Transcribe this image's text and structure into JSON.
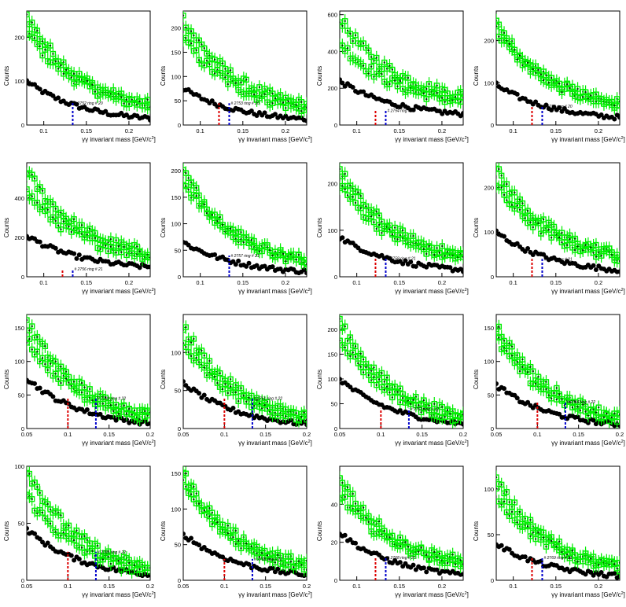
{
  "common": {
    "xlabel_main": "γγ invariant mass [GeV/c",
    "xlabel_sup": "2",
    "xlabel_end": "]",
    "ylabel": "Counts"
  },
  "colors": {
    "green": "#00ee00",
    "black": "#000000",
    "red_line": "#dd0000",
    "blue_line": "#0000cc"
  },
  "chart_data": [
    {
      "type": "scatter",
      "xlim": [
        0.08,
        0.225
      ],
      "ylim": [
        0,
        260
      ],
      "xticks": [
        0.1,
        0.15,
        0.2
      ],
      "xtick_labels": [
        "0.1",
        "0.15",
        "0.2"
      ],
      "yticks": [
        0,
        100,
        200
      ],
      "ytick_labels": [
        "0",
        "100",
        "200"
      ],
      "annotation": "# 2752  ring # 20",
      "red_x": null,
      "blue_x": 0.134,
      "marker_y": 50,
      "series": [
        {
          "name": "",
          "kind": "black",
          "x": [
            0.08,
            0.225
          ],
          "y": [
            100,
            15
          ]
        },
        {
          "name": "",
          "kind": "green",
          "x": [
            0.08,
            0.225
          ],
          "y": [
            250,
            45
          ]
        },
        {
          "name": "",
          "kind": "green2",
          "x": [
            0.08,
            0.225
          ],
          "y": [
            215,
            45
          ]
        }
      ]
    },
    {
      "type": "scatter",
      "xlim": [
        0.08,
        0.225
      ],
      "ylim": [
        0,
        235
      ],
      "xticks": [
        0.1,
        0.15,
        0.2
      ],
      "xtick_labels": [
        "0.1",
        "0.15",
        "0.2"
      ],
      "yticks": [
        0,
        50,
        100,
        150,
        200
      ],
      "ytick_labels": [
        "0",
        "50",
        "100",
        "150",
        "200"
      ],
      "annotation": "# 2753  ring # 20",
      "red_x": 0.122,
      "blue_x": 0.134,
      "marker_y": 45,
      "series": [
        {
          "name": "",
          "kind": "black",
          "x": [
            0.08,
            0.225
          ],
          "y": [
            75,
            12
          ]
        },
        {
          "name": "",
          "kind": "green",
          "x": [
            0.08,
            0.225
          ],
          "y": [
            220,
            40
          ]
        },
        {
          "name": "",
          "kind": "green2",
          "x": [
            0.08,
            0.225
          ],
          "y": [
            180,
            35
          ]
        }
      ]
    },
    {
      "type": "scatter",
      "xlim": [
        0.08,
        0.225
      ],
      "ylim": [
        0,
        620
      ],
      "xticks": [
        0.1,
        0.15,
        0.2
      ],
      "xtick_labels": [
        "0.1",
        "0.15",
        "0.2"
      ],
      "yticks": [
        0,
        200,
        400,
        600
      ],
      "ytick_labels": [
        "0",
        "200",
        "400",
        "600"
      ],
      "annotation": "# 2754  ring # 20",
      "red_x": 0.122,
      "blue_x": 0.134,
      "marker_y": 80,
      "series": [
        {
          "name": "",
          "kind": "black",
          "x": [
            0.08,
            0.225
          ],
          "y": [
            240,
            60
          ]
        },
        {
          "name": "",
          "kind": "green",
          "x": [
            0.08,
            0.225
          ],
          "y": [
            580,
            160
          ]
        },
        {
          "name": "",
          "kind": "green2",
          "x": [
            0.08,
            0.225
          ],
          "y": [
            450,
            130
          ]
        }
      ]
    },
    {
      "type": "scatter",
      "xlim": [
        0.08,
        0.225
      ],
      "ylim": [
        0,
        270
      ],
      "xticks": [
        0.1,
        0.15,
        0.2
      ],
      "xtick_labels": [
        "0.1",
        "0.15",
        "0.2"
      ],
      "yticks": [
        0,
        100,
        200
      ],
      "ytick_labels": [
        "0",
        "100",
        "200"
      ],
      "annotation": "# 2755  ring # 20",
      "red_x": 0.122,
      "blue_x": 0.134,
      "marker_y": 45,
      "series": [
        {
          "name": "",
          "kind": "black",
          "x": [
            0.08,
            0.225
          ],
          "y": [
            95,
            18
          ]
        },
        {
          "name": "",
          "kind": "green",
          "x": [
            0.08,
            0.225
          ],
          "y": [
            240,
            50
          ]
        },
        {
          "name": "",
          "kind": "green2",
          "x": [
            0.08,
            0.225
          ],
          "y": [
            225,
            50
          ]
        }
      ]
    },
    {
      "type": "scatter",
      "xlim": [
        0.08,
        0.225
      ],
      "ylim": [
        0,
        580
      ],
      "xticks": [
        0.1,
        0.15,
        0.2
      ],
      "xtick_labels": [
        "0.1",
        "0.15",
        "0.2"
      ],
      "yticks": [
        0,
        200,
        400
      ],
      "ytick_labels": [
        "0",
        "200",
        "400"
      ],
      "annotation": "# 2756  ring # 21",
      "red_x": 0.122,
      "blue_x": 0.134,
      "marker_y": 40,
      "series": [
        {
          "name": "",
          "kind": "black",
          "x": [
            0.08,
            0.225
          ],
          "y": [
            210,
            50
          ]
        },
        {
          "name": "",
          "kind": "green",
          "x": [
            0.08,
            0.225
          ],
          "y": [
            540,
            120
          ]
        },
        {
          "name": "",
          "kind": "green2",
          "x": [
            0.08,
            0.225
          ],
          "y": [
            430,
            110
          ]
        }
      ]
    },
    {
      "type": "scatter",
      "xlim": [
        0.08,
        0.225
      ],
      "ylim": [
        0,
        215
      ],
      "xticks": [
        0.1,
        0.15,
        0.2
      ],
      "xtick_labels": [
        "0.1",
        "0.15",
        "0.2"
      ],
      "yticks": [
        0,
        50,
        100,
        150,
        200
      ],
      "ytick_labels": [
        "0",
        "50",
        "100",
        "150",
        "200"
      ],
      "annotation": "# 2757  ring # 21",
      "red_x": null,
      "blue_x": 0.134,
      "marker_y": 40,
      "series": [
        {
          "name": "",
          "kind": "black",
          "x": [
            0.08,
            0.225
          ],
          "y": [
            65,
            10
          ]
        },
        {
          "name": "",
          "kind": "green",
          "x": [
            0.08,
            0.225
          ],
          "y": [
            200,
            30
          ]
        },
        {
          "name": "",
          "kind": "green2",
          "x": [
            0.08,
            0.225
          ],
          "y": [
            180,
            30
          ]
        }
      ]
    },
    {
      "type": "scatter",
      "xlim": [
        0.08,
        0.225
      ],
      "ylim": [
        0,
        245
      ],
      "xticks": [
        0.1,
        0.15,
        0.2
      ],
      "xtick_labels": [
        "0.1",
        "0.15",
        "0.2"
      ],
      "yticks": [
        0,
        100,
        200
      ],
      "ytick_labels": [
        "0",
        "100",
        "200"
      ],
      "annotation": "# 2758  ring # 21",
      "red_x": 0.122,
      "blue_x": 0.134,
      "marker_y": 40,
      "series": [
        {
          "name": "",
          "kind": "black",
          "x": [
            0.08,
            0.225
          ],
          "y": [
            85,
            15
          ]
        },
        {
          "name": "",
          "kind": "green",
          "x": [
            0.08,
            0.225
          ],
          "y": [
            230,
            45
          ]
        },
        {
          "name": "",
          "kind": "green2",
          "x": [
            0.08,
            0.225
          ],
          "y": [
            200,
            40
          ]
        }
      ]
    },
    {
      "type": "scatter",
      "xlim": [
        0.08,
        0.225
      ],
      "ylim": [
        0,
        255
      ],
      "xticks": [
        0.1,
        0.15,
        0.2
      ],
      "xtick_labels": [
        "0.1",
        "0.15",
        "0.2"
      ],
      "yticks": [
        0,
        100,
        200
      ],
      "ytick_labels": [
        "0",
        "100",
        "200"
      ],
      "annotation": "# 2759  ring # 21",
      "red_x": 0.122,
      "blue_x": 0.134,
      "marker_y": 40,
      "series": [
        {
          "name": "",
          "kind": "black",
          "x": [
            0.08,
            0.225
          ],
          "y": [
            100,
            15
          ]
        },
        {
          "name": "",
          "kind": "green",
          "x": [
            0.08,
            0.225
          ],
          "y": [
            240,
            50
          ]
        },
        {
          "name": "",
          "kind": "green2",
          "x": [
            0.08,
            0.225
          ],
          "y": [
            205,
            45
          ]
        }
      ]
    },
    {
      "type": "scatter",
      "xlim": [
        0.05,
        0.2
      ],
      "ylim": [
        0,
        170
      ],
      "xticks": [
        0.05,
        0.1,
        0.15,
        0.2
      ],
      "xtick_labels": [
        "0.05",
        "0.1",
        "0.15",
        "0.2"
      ],
      "yticks": [
        0,
        50,
        100,
        150
      ],
      "ytick_labels": [
        "0",
        "50",
        "100",
        "150"
      ],
      "annotation": "# 2760  ring # 22",
      "red_x": 0.1,
      "blue_x": 0.134,
      "marker_y": 45,
      "series": [
        {
          "name": "",
          "kind": "black",
          "x": [
            0.05,
            0.2
          ],
          "y": [
            75,
            8
          ]
        },
        {
          "name": "",
          "kind": "green",
          "x": [
            0.05,
            0.2
          ],
          "y": [
            160,
            20
          ]
        },
        {
          "name": "",
          "kind": "green2",
          "x": [
            0.05,
            0.2
          ],
          "y": [
            135,
            18
          ]
        }
      ]
    },
    {
      "type": "scatter",
      "xlim": [
        0.05,
        0.2
      ],
      "ylim": [
        0,
        150
      ],
      "xticks": [
        0.05,
        0.1,
        0.15,
        0.2
      ],
      "xtick_labels": [
        "0.05",
        "0.1",
        "0.15",
        "0.2"
      ],
      "yticks": [
        0,
        50,
        100
      ],
      "ytick_labels": [
        "0",
        "50",
        "100"
      ],
      "annotation": "# 2761  ring # 22",
      "red_x": 0.1,
      "blue_x": 0.134,
      "marker_y": 40,
      "series": [
        {
          "name": "",
          "kind": "black",
          "x": [
            0.05,
            0.2
          ],
          "y": [
            60,
            6
          ]
        },
        {
          "name": "",
          "kind": "green",
          "x": [
            0.05,
            0.2
          ],
          "y": [
            135,
            15
          ]
        },
        {
          "name": "",
          "kind": "green2",
          "x": [
            0.05,
            0.2
          ],
          "y": [
            110,
            14
          ]
        }
      ]
    },
    {
      "type": "scatter",
      "xlim": [
        0.05,
        0.2
      ],
      "ylim": [
        0,
        230
      ],
      "xticks": [
        0.05,
        0.1,
        0.15,
        0.2
      ],
      "xtick_labels": [
        "0.05",
        "0.1",
        "0.15",
        "0.2"
      ],
      "yticks": [
        0,
        50,
        100,
        150,
        200
      ],
      "ytick_labels": [
        "0",
        "50",
        "100",
        "150",
        "200"
      ],
      "annotation": "# 2762  ring # 22",
      "red_x": 0.1,
      "blue_x": 0.134,
      "marker_y": 40,
      "series": [
        {
          "name": "",
          "kind": "black",
          "x": [
            0.05,
            0.2
          ],
          "y": [
            100,
            10
          ]
        },
        {
          "name": "",
          "kind": "green",
          "x": [
            0.05,
            0.2
          ],
          "y": [
            215,
            25
          ]
        },
        {
          "name": "",
          "kind": "green2",
          "x": [
            0.05,
            0.2
          ],
          "y": [
            185,
            20
          ]
        }
      ]
    },
    {
      "type": "scatter",
      "xlim": [
        0.05,
        0.2
      ],
      "ylim": [
        0,
        170
      ],
      "xticks": [
        0.05,
        0.1,
        0.15,
        0.2
      ],
      "xtick_labels": [
        "0.05",
        "0.1",
        "0.15",
        "0.2"
      ],
      "yticks": [
        0,
        50,
        100,
        150
      ],
      "ytick_labels": [
        "0",
        "50",
        "100",
        "150"
      ],
      "annotation": "# 2764  ring # 22",
      "red_x": 0.1,
      "blue_x": 0.134,
      "marker_y": 40,
      "series": [
        {
          "name": "",
          "kind": "black",
          "x": [
            0.05,
            0.2
          ],
          "y": [
            65,
            6
          ]
        },
        {
          "name": "",
          "kind": "green",
          "x": [
            0.05,
            0.2
          ],
          "y": [
            155,
            18
          ]
        },
        {
          "name": "",
          "kind": "green2",
          "x": [
            0.05,
            0.2
          ],
          "y": [
            135,
            15
          ]
        }
      ]
    },
    {
      "type": "scatter",
      "xlim": [
        0.05,
        0.2
      ],
      "ylim": [
        0,
        100
      ],
      "xticks": [
        0.05,
        0.1,
        0.15,
        0.2
      ],
      "xtick_labels": [
        "0.05",
        "0.1",
        "0.15",
        "0.2"
      ],
      "yticks": [
        0,
        50,
        100
      ],
      "ytick_labels": [
        "0",
        "50",
        "100"
      ],
      "annotation": "# 2765  ring # 22",
      "red_x": 0.1,
      "blue_x": 0.134,
      "marker_y": 25,
      "series": [
        {
          "name": "",
          "kind": "black",
          "x": [
            0.05,
            0.2
          ],
          "y": [
            45,
            5
          ]
        },
        {
          "name": "",
          "kind": "green",
          "x": [
            0.05,
            0.2
          ],
          "y": [
            98,
            10
          ]
        },
        {
          "name": "",
          "kind": "green2",
          "x": [
            0.05,
            0.2
          ],
          "y": [
            75,
            8
          ]
        }
      ]
    },
    {
      "type": "scatter",
      "xlim": [
        0.05,
        0.2
      ],
      "ylim": [
        0,
        160
      ],
      "xticks": [
        0.05,
        0.1,
        0.15,
        0.2
      ],
      "xtick_labels": [
        "0.05",
        "0.1",
        "0.15",
        "0.2"
      ],
      "yticks": [
        0,
        50,
        100,
        150
      ],
      "ytick_labels": [
        "0",
        "50",
        "100",
        "150"
      ],
      "annotation": "# 2766  ring # 22",
      "red_x": 0.1,
      "blue_x": 0.134,
      "marker_y": 30,
      "series": [
        {
          "name": "",
          "kind": "black",
          "x": [
            0.05,
            0.2
          ],
          "y": [
            65,
            8
          ]
        },
        {
          "name": "",
          "kind": "green",
          "x": [
            0.05,
            0.2
          ],
          "y": [
            150,
            22
          ]
        },
        {
          "name": "",
          "kind": "green2",
          "x": [
            0.05,
            0.2
          ],
          "y": [
            135,
            20
          ]
        }
      ]
    },
    {
      "type": "scatter",
      "xlim": [
        0.08,
        0.225
      ],
      "ylim": [
        0,
        60
      ],
      "xticks": [
        0.1,
        0.15,
        0.2
      ],
      "xtick_labels": [
        "0.1",
        "0.15",
        "0.2"
      ],
      "yticks": [
        0,
        20,
        40
      ],
      "ytick_labels": [
        "0",
        "20",
        "40"
      ],
      "annotation": "# 2768  ring # 21",
      "red_x": 0.122,
      "blue_x": 0.134,
      "marker_y": 12,
      "series": [
        {
          "name": "",
          "kind": "black",
          "x": [
            0.08,
            0.225
          ],
          "y": [
            25,
            3
          ]
        },
        {
          "name": "",
          "kind": "green",
          "x": [
            0.08,
            0.225
          ],
          "y": [
            55,
            8
          ]
        },
        {
          "name": "",
          "kind": "green2",
          "x": [
            0.08,
            0.225
          ],
          "y": [
            45,
            10
          ]
        }
      ]
    },
    {
      "type": "scatter",
      "xlim": [
        0.08,
        0.225
      ],
      "ylim": [
        0,
        125
      ],
      "xticks": [
        0.1,
        0.15,
        0.2
      ],
      "xtick_labels": [
        "0.1",
        "0.15",
        "0.2"
      ],
      "yticks": [
        0,
        50,
        100
      ],
      "ytick_labels": [
        "0",
        "50",
        "100"
      ],
      "annotation": "# 2769  ring # 21",
      "red_x": 0.122,
      "blue_x": 0.134,
      "marker_y": 25,
      "series": [
        {
          "name": "",
          "kind": "black",
          "x": [
            0.08,
            0.225
          ],
          "y": [
            40,
            5
          ]
        },
        {
          "name": "",
          "kind": "green",
          "x": [
            0.08,
            0.225
          ],
          "y": [
            110,
            15
          ]
        },
        {
          "name": "",
          "kind": "green2",
          "x": [
            0.08,
            0.225
          ],
          "y": [
            95,
            14
          ]
        }
      ]
    }
  ]
}
